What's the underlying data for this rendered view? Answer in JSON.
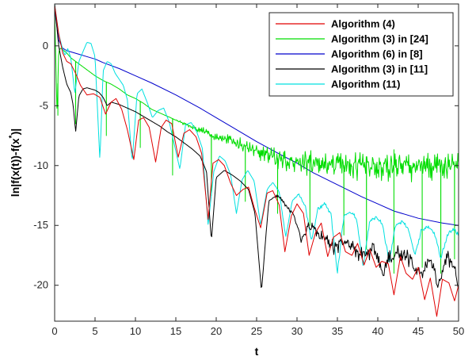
{
  "chart_data": {
    "type": "line",
    "title": "",
    "xlabel": "t",
    "ylabel": "ln|f(x(t))-f(x*)|",
    "xlim": [
      0,
      50
    ],
    "ylim": [
      -23,
      3.5
    ],
    "xticks": [
      0,
      5,
      10,
      15,
      20,
      25,
      30,
      35,
      40,
      45,
      50
    ],
    "yticks": [
      0,
      -5,
      -10,
      -15,
      -20
    ],
    "xtick_labels": [
      "0",
      "5",
      "10",
      "15",
      "20",
      "25",
      "30",
      "35",
      "40",
      "45",
      "50"
    ],
    "ytick_labels": [
      "0",
      "-5",
      "-10",
      "-15",
      "-20"
    ],
    "grid": false,
    "legend_position": "top-right",
    "series": [
      {
        "name": "Algorithm (4)",
        "color": "#e00000",
        "x": [
          0,
          0.5,
          1.0,
          1.5,
          2.0,
          2.6,
          3.2,
          4.0,
          4.8,
          5.6,
          6.3,
          7.0,
          7.6,
          8.3,
          9.0,
          9.8,
          10.4,
          11.0,
          11.7,
          12.5,
          13.2,
          13.8,
          14.5,
          15.3,
          16.0,
          16.7,
          17.5,
          18.2,
          19.0,
          19.6,
          20.3,
          21.0,
          21.8,
          22.5,
          23.3,
          24.0,
          24.7,
          25.5,
          26.3,
          27.0,
          27.8,
          28.5,
          29.3,
          30.0,
          30.8,
          31.5,
          32.3,
          33.0,
          33.8,
          34.5,
          35.3,
          36.0,
          36.8,
          37.5,
          38.3,
          39.0,
          39.8,
          40.5,
          41.3,
          42.0,
          42.8,
          43.5,
          44.3,
          45.0,
          45.8,
          46.5,
          47.3,
          48.0,
          48.8,
          49.5,
          50.0
        ],
        "y": [
          3.4,
          1.0,
          -0.6,
          -1.3,
          -1.5,
          -2.3,
          -3.3,
          -4.1,
          -4.0,
          -4.3,
          -5.7,
          -4.7,
          -4.4,
          -5.3,
          -7.0,
          -9.5,
          -6.2,
          -6.0,
          -6.8,
          -9.7,
          -6.8,
          -6.2,
          -6.5,
          -9.3,
          -7.3,
          -7.0,
          -7.6,
          -9.0,
          -14.5,
          -9.8,
          -9.5,
          -10.0,
          -11.5,
          -12.5,
          -12.0,
          -11.8,
          -13.5,
          -15.2,
          -12.3,
          -12.1,
          -13.3,
          -17.2,
          -14.2,
          -13.2,
          -14.0,
          -17.5,
          -15.6,
          -14.8,
          -17.6,
          -16.0,
          -15.6,
          -17.2,
          -17.5,
          -16.5,
          -18.3,
          -17.0,
          -18.5,
          -18.0,
          -18.2,
          -20.8,
          -17.6,
          -19.0,
          -19.5,
          -18.5,
          -21.2,
          -19.4,
          -22.6,
          -19.5,
          -19.8,
          -21.3,
          -20.0
        ]
      },
      {
        "name": "Algorithm (3) in [24]",
        "color": "#00dd00",
        "x": [
          0,
          0.3,
          0.5,
          0.7,
          1.0,
          1.5,
          2.0,
          3.0,
          4.0,
          5.0,
          6.0,
          7.0,
          8.0,
          9.0,
          10.0,
          11.0,
          12.0,
          13.0,
          14.0,
          15.0,
          16.0,
          17.0,
          18.0,
          19.0,
          20.0,
          21.0,
          22.0,
          23.0,
          24.0,
          25.0,
          26.0,
          27.0,
          28.0,
          29.0,
          30.0,
          31.0,
          32.0,
          33.0,
          34.0,
          35.0,
          36.0,
          37.0,
          38.0,
          39.0,
          40.0,
          41.0,
          42.0,
          43.0,
          44.0,
          45.0,
          46.0,
          47.0,
          48.0,
          49.0,
          50.0
        ],
        "y": [
          3.0,
          -5.8,
          -0.5,
          -0.2,
          -0.3,
          -0.6,
          -1.0,
          -1.5,
          -2.0,
          -2.5,
          -2.9,
          -3.2,
          -3.6,
          -4.1,
          -4.4,
          -4.8,
          -5.3,
          -5.6,
          -5.9,
          -6.2,
          -6.5,
          -6.8,
          -7.0,
          -7.3,
          -7.6,
          -7.8,
          -8.0,
          -8.3,
          -8.6,
          -8.8,
          -9.0,
          -9.3,
          -9.5,
          -9.6,
          -9.7,
          -9.8,
          -9.9,
          -10.0,
          -10.0,
          -10.0,
          -10.0,
          -10.0,
          -10.0,
          -10.0,
          -10.0,
          -10.0,
          -10.0,
          -10.0,
          -10.0,
          -10.0,
          -10.0,
          -10.0,
          -10.0,
          -10.0,
          -10.0
        ],
        "noise_amplitude": 1.1,
        "spike_x": [
          0.4,
          2.6,
          6.4,
          10.6,
          14.6,
          19.4,
          23.6,
          27.6,
          31.6,
          35.8,
          38.6,
          42.0,
          45.5,
          47.8,
          49.5
        ],
        "spike_y": [
          -5.8,
          -6.5,
          -7.5,
          -8.5,
          -10.8,
          -12.5,
          -13.0,
          -14.0,
          -15.0,
          -15.8,
          -17.0,
          -19.0,
          -18.5,
          -19.0,
          -17.8
        ]
      },
      {
        "name": "Algorithm (6) in [8]",
        "color": "#0000cc",
        "x": [
          0,
          0.5,
          1.0,
          1.5,
          2.0,
          3.0,
          4.0,
          5.0,
          6.0,
          8.0,
          10.0,
          12.0,
          15.0,
          18.0,
          20.0,
          22.0,
          25.0,
          28.0,
          30.0,
          32.0,
          35.0,
          38.0,
          40.0,
          42.0,
          45.0,
          48.0,
          50.0
        ],
        "y": [
          3.0,
          0.5,
          -0.2,
          -0.4,
          -0.5,
          -0.7,
          -0.9,
          -1.1,
          -1.4,
          -1.9,
          -2.5,
          -3.1,
          -4.1,
          -5.2,
          -6.0,
          -6.8,
          -8.0,
          -9.1,
          -9.8,
          -10.6,
          -11.6,
          -12.6,
          -13.2,
          -13.8,
          -14.4,
          -14.8,
          -15.0
        ]
      },
      {
        "name": "Algorithm (3) in [11]",
        "color": "#000000",
        "x": [
          0,
          0.5,
          1.0,
          1.5,
          2.0,
          2.3,
          2.6,
          3.0,
          3.5,
          4.0,
          4.5,
          5.0,
          5.5,
          6.0,
          6.5,
          7.0,
          8.0,
          9.0,
          10.0,
          11.0,
          12.0,
          13.0,
          14.0,
          15.0,
          16.0,
          17.0,
          18.0,
          18.8,
          19.4,
          20.0,
          21.0,
          22.0,
          23.0,
          24.0,
          24.8,
          25.6,
          26.5,
          27.5,
          28.5,
          29.5,
          30.5,
          31.5,
          32.5,
          33.5,
          34.5,
          35.5,
          36.5,
          37.5,
          38.5,
          39.5,
          40.5,
          41.5,
          42.5,
          43.5,
          44.5,
          45.5,
          46.5,
          47.5,
          48.5,
          49.5,
          50.0
        ],
        "y": [
          3.5,
          0.0,
          -1.8,
          -3.2,
          -3.9,
          -5.0,
          -7.2,
          -4.2,
          -3.6,
          -3.5,
          -3.6,
          -3.7,
          -3.9,
          -4.3,
          -5.0,
          -4.7,
          -4.9,
          -5.2,
          -5.5,
          -5.9,
          -6.3,
          -6.7,
          -7.2,
          -7.6,
          -8.1,
          -8.6,
          -9.2,
          -10.5,
          -16.3,
          -11.0,
          -10.4,
          -10.8,
          -11.3,
          -12.0,
          -14.0,
          -20.5,
          -13.0,
          -12.5,
          -13.2,
          -14.0,
          -16.2,
          -15.0,
          -15.5,
          -16.2,
          -16.8,
          -16.5,
          -16.4,
          -17.2,
          -17.5,
          -16.8,
          -19.0,
          -17.8,
          -17.2,
          -17.5,
          -18.3,
          -19.0,
          -17.8,
          -20.0,
          -17.5,
          -18.5,
          -20.0
        ],
        "noise_amplitude": 0.6
      },
      {
        "name": "Algorithm (11)",
        "color": "#00e0e0",
        "x": [
          0,
          0.5,
          1.0,
          1.3,
          1.6,
          2.0,
          2.5,
          3.0,
          3.5,
          4.0,
          4.5,
          5.0,
          5.6,
          6.0,
          6.5,
          7.0,
          7.5,
          8.0,
          8.5,
          9.0,
          9.6,
          10.2,
          10.8,
          11.5,
          12.1,
          12.8,
          13.5,
          14.2,
          14.8,
          15.5,
          16.2,
          16.9,
          17.6,
          18.3,
          19.0,
          19.7,
          20.4,
          21.1,
          21.8,
          22.5,
          23.2,
          23.9,
          24.7,
          25.5,
          26.3,
          27.0,
          27.8,
          28.6,
          29.4,
          30.2,
          31.0,
          31.8,
          32.6,
          33.4,
          34.2,
          35.0,
          35.8,
          36.6,
          37.4,
          38.2,
          39.0,
          39.8,
          40.6,
          41.4,
          42.2,
          43.0,
          43.8,
          44.6,
          45.4,
          46.2,
          47.0,
          47.8,
          48.6,
          49.4,
          50.0
        ],
        "y": [
          3.5,
          1.0,
          -0.3,
          -0.8,
          -0.2,
          -1.0,
          -4.0,
          -1.3,
          -0.5,
          0.3,
          0.2,
          -0.9,
          -9.6,
          -2.1,
          -1.3,
          -1.5,
          -2.3,
          -2.8,
          -3.3,
          -4.5,
          -9.7,
          -4.0,
          -3.6,
          -4.8,
          -6.0,
          -5.4,
          -5.2,
          -6.4,
          -8.2,
          -10.3,
          -6.6,
          -6.4,
          -7.2,
          -8.6,
          -15.0,
          -10.5,
          -9.2,
          -9.6,
          -10.8,
          -14.0,
          -11.2,
          -10.4,
          -11.3,
          -15.0,
          -12.0,
          -11.4,
          -12.2,
          -16.0,
          -13.0,
          -12.4,
          -13.3,
          -16.3,
          -13.6,
          -13.2,
          -14.0,
          -19.0,
          -14.2,
          -13.8,
          -14.5,
          -18.4,
          -14.7,
          -14.2,
          -15.0,
          -18.0,
          -15.0,
          -14.6,
          -15.3,
          -17.5,
          -15.4,
          -15.0,
          -15.6,
          -17.8,
          -15.8,
          -15.2,
          -15.8
        ],
        "noise_amplitude": 0.2
      }
    ]
  }
}
